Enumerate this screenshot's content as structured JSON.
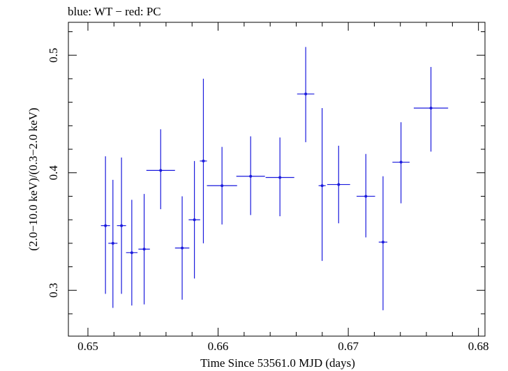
{
  "chart_data": {
    "type": "scatter",
    "title": "blue: WT − red: PC",
    "xlabel": "Time Since 53561.0 MJD (days)",
    "ylabel": "(2.0−10.0 keV)/(0.3−2.0 keV)",
    "xlim": [
      0.6485,
      0.6805
    ],
    "ylim": [
      0.261,
      0.528
    ],
    "xticks": [
      0.65,
      0.66,
      0.67,
      0.68
    ],
    "xtick_labels": [
      "0.65",
      "0.66",
      "0.67",
      "0.68"
    ],
    "yticks": [
      0.3,
      0.4,
      0.5
    ],
    "ytick_labels": [
      "0.3",
      "0.4",
      "0.5"
    ],
    "grid": false,
    "legend": "none",
    "colors": {
      "WT": "#1a1add",
      "axes": "#000000"
    },
    "series": [
      {
        "name": "WT",
        "points": [
          {
            "x": 0.65135,
            "xerr": 0.00035,
            "y": 0.355,
            "ylow": 0.297,
            "yhigh": 0.414
          },
          {
            "x": 0.65192,
            "xerr": 0.00035,
            "y": 0.34,
            "ylow": 0.285,
            "yhigh": 0.394
          },
          {
            "x": 0.65258,
            "xerr": 0.00035,
            "y": 0.355,
            "ylow": 0.297,
            "yhigh": 0.413
          },
          {
            "x": 0.65337,
            "xerr": 0.00044,
            "y": 0.332,
            "ylow": 0.287,
            "yhigh": 0.377
          },
          {
            "x": 0.65432,
            "xerr": 0.00044,
            "y": 0.335,
            "ylow": 0.288,
            "yhigh": 0.382
          },
          {
            "x": 0.65559,
            "xerr": 0.0011,
            "y": 0.402,
            "ylow": 0.369,
            "yhigh": 0.437
          },
          {
            "x": 0.65724,
            "xerr": 0.00055,
            "y": 0.336,
            "ylow": 0.292,
            "yhigh": 0.38
          },
          {
            "x": 0.65818,
            "xerr": 0.00044,
            "y": 0.36,
            "ylow": 0.31,
            "yhigh": 0.41
          },
          {
            "x": 0.65887,
            "xerr": 0.00027,
            "y": 0.41,
            "ylow": 0.34,
            "yhigh": 0.48
          },
          {
            "x": 0.6603,
            "xerr": 0.00116,
            "y": 0.389,
            "ylow": 0.356,
            "yhigh": 0.422
          },
          {
            "x": 0.6625,
            "xerr": 0.0011,
            "y": 0.397,
            "ylow": 0.364,
            "yhigh": 0.431
          },
          {
            "x": 0.66475,
            "xerr": 0.0011,
            "y": 0.396,
            "ylow": 0.363,
            "yhigh": 0.43
          },
          {
            "x": 0.66673,
            "xerr": 0.00066,
            "y": 0.467,
            "ylow": 0.426,
            "yhigh": 0.507
          },
          {
            "x": 0.66799,
            "xerr": 0.00027,
            "y": 0.389,
            "ylow": 0.325,
            "yhigh": 0.455
          },
          {
            "x": 0.66926,
            "xerr": 0.00088,
            "y": 0.39,
            "ylow": 0.357,
            "yhigh": 0.423
          },
          {
            "x": 0.67135,
            "xerr": 0.00071,
            "y": 0.38,
            "ylow": 0.345,
            "yhigh": 0.416
          },
          {
            "x": 0.67267,
            "xerr": 0.00033,
            "y": 0.341,
            "ylow": 0.283,
            "yhigh": 0.397
          },
          {
            "x": 0.67405,
            "xerr": 0.00066,
            "y": 0.409,
            "ylow": 0.374,
            "yhigh": 0.443
          },
          {
            "x": 0.67635,
            "xerr": 0.00132,
            "y": 0.455,
            "ylow": 0.418,
            "yhigh": 0.49
          }
        ]
      }
    ]
  }
}
